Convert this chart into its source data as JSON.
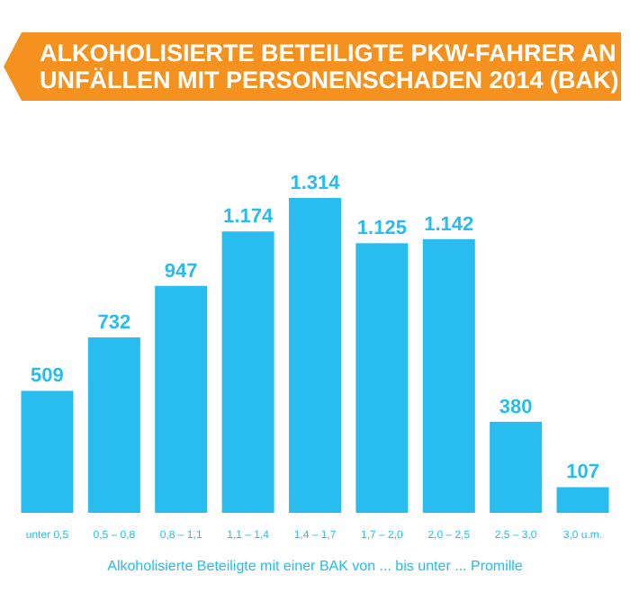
{
  "chart_data": {
    "type": "bar",
    "title": "ALKOHOLISIERTE BETEILIGTE PKW-FAHRER AN\nUNFÄLLEN MIT PERSONENSCHADEN 2014 (BAK)",
    "xlabel": "Alkoholisierte Beteiligte mit einer BAK von ... bis unter ... Promille",
    "categories": [
      "unter 0,5",
      "0,5 – 0,8",
      "0,8 – 1,1",
      "1,1 – 1,4",
      "1,4 – 1,7",
      "1,7 – 2,0",
      "2,0 – 2,5",
      "2,5 – 3,0",
      "3,0 u.m."
    ],
    "values": [
      509,
      732,
      947,
      1174,
      1314,
      1125,
      1142,
      380,
      107
    ],
    "value_labels": [
      "509",
      "732",
      "947",
      "1.174",
      "1.314",
      "1.125",
      "1.142",
      "380",
      "107"
    ],
    "color": "#29bdef"
  }
}
